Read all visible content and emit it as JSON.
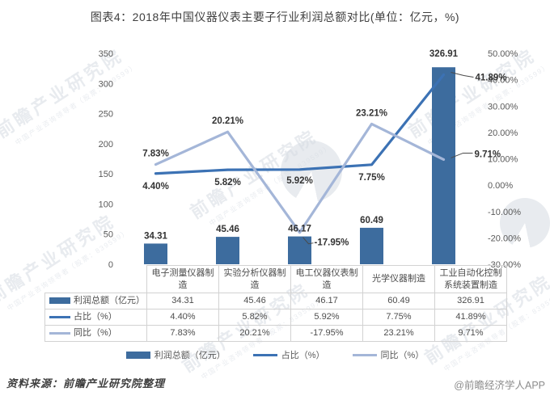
{
  "title": "图表4：2018年中国仪器仪表主要子行业利润总额对比(单位：亿元，%)",
  "footer": {
    "source": "资料来源：前瞻产业研究院整理",
    "credit": "@前瞻经济学人APP"
  },
  "watermark": {
    "main": "前瞻产业研究院",
    "sub": "中国产业咨询领导者（股票：839599）"
  },
  "colors": {
    "bar": "#3d6c9e",
    "line_share": "#3c72b4",
    "line_yoy": "#a4b6d8",
    "axis_text": "#595959",
    "data_label": "#333333",
    "table_border": "#d2d2d2"
  },
  "chart_data": {
    "type": "bar+line combo",
    "title": "图表4：2018年中国仪器仪表主要子行业利润总额对比(单位：亿元，%)",
    "categories": [
      "电子测量仪器制造",
      "实验分析仪器制造",
      "电工仪器仪表制造",
      "光学仪器制造",
      "工业自动化控制系统装置制造"
    ],
    "series": [
      {
        "name": "利润总额（亿元）",
        "type": "bar",
        "axis": "left",
        "values": [
          34.31,
          45.46,
          46.17,
          60.49,
          326.91
        ],
        "labels": [
          "34.31",
          "45.46",
          "46.17",
          "60.49",
          "326.91"
        ]
      },
      {
        "name": "占比（%）",
        "type": "line",
        "axis": "right",
        "values": [
          4.4,
          5.82,
          5.92,
          7.75,
          41.89
        ],
        "labels": [
          "4.40%",
          "5.82%",
          "5.92%",
          "7.75%",
          "41.89%"
        ]
      },
      {
        "name": "同比（%）",
        "type": "line",
        "axis": "right",
        "values": [
          7.83,
          20.21,
          -17.95,
          23.21,
          9.71
        ],
        "labels": [
          "7.83%",
          "20.21%",
          "-17.95%",
          "23.21%",
          "9.71%"
        ]
      }
    ],
    "left_axis": {
      "min": 0,
      "max": 350,
      "tick_values": [
        0,
        50,
        100,
        150,
        200,
        250,
        300,
        350
      ],
      "tick_labels": [
        "0",
        "50",
        "100",
        "150",
        "200",
        "250",
        "300",
        "350"
      ]
    },
    "right_axis": {
      "min": -30,
      "max": 50,
      "tick_values": [
        50,
        40,
        30,
        20,
        10,
        0,
        -10,
        -20,
        -30
      ],
      "tick_labels": [
        "50.00%",
        "40.00%",
        "30.00%",
        "20.00%",
        "10.00%",
        "0.00%",
        "-10.00%",
        "-20.00%",
        "-30.00%"
      ]
    },
    "grid": false,
    "legend_position": "bottom",
    "data_table_shown": true
  }
}
